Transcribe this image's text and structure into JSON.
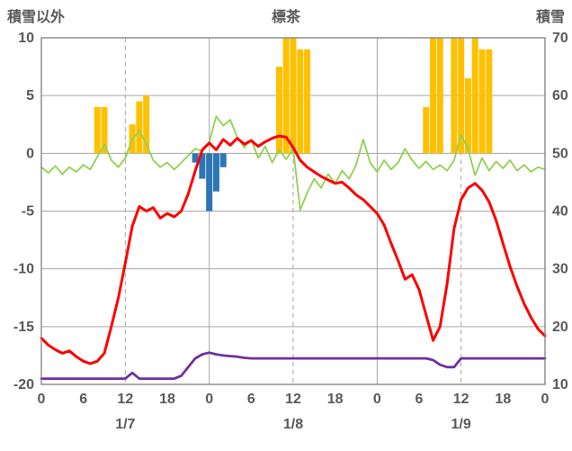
{
  "chart_data": {
    "type": "combo",
    "title": "標茶",
    "left_axis": {
      "label": "積雪以外",
      "min": -20,
      "max": 10,
      "ticks": [
        10,
        5,
        0,
        -5,
        -10,
        -15,
        -20
      ]
    },
    "right_axis": {
      "label": "積雪",
      "min": 10,
      "max": 70,
      "ticks": [
        70,
        60,
        50,
        40,
        30,
        20,
        10
      ]
    },
    "x_axis": {
      "hours_total": 72,
      "tick_every": 6,
      "tick_labels": [
        "0",
        "6",
        "12",
        "18",
        "0",
        "6",
        "12",
        "18",
        "0",
        "6",
        "12",
        "18",
        "0"
      ],
      "day_labels": [
        "1/7",
        "1/8",
        "1/9"
      ],
      "day_label_hours": [
        12,
        36,
        60
      ],
      "gridlines_solid_hours": [
        24,
        48
      ],
      "gridlines_dashed_hours": [
        12,
        36,
        60
      ]
    },
    "colors": {
      "background": "#FFFFFF",
      "grid": "#A6A6A6",
      "border": "#7F7F7F",
      "text": "#595959"
    },
    "series": [
      {
        "name": "sunshine",
        "type": "bar",
        "axis": "left",
        "color": "#FFC000",
        "points": [
          [
            8,
            4
          ],
          [
            9,
            4
          ],
          [
            13,
            2.5
          ],
          [
            14,
            4.5
          ],
          [
            15,
            5
          ],
          [
            34,
            7.5
          ],
          [
            35,
            10
          ],
          [
            36,
            10
          ],
          [
            37,
            9
          ],
          [
            38,
            9
          ],
          [
            55,
            4
          ],
          [
            56,
            10
          ],
          [
            57,
            10
          ],
          [
            59,
            10
          ],
          [
            60,
            10
          ],
          [
            61,
            6.5
          ],
          [
            62,
            10
          ],
          [
            63,
            9
          ],
          [
            64,
            9
          ]
        ]
      },
      {
        "name": "snowfall",
        "type": "bar",
        "axis": "left",
        "color": "#2E75B6",
        "points": [
          [
            22,
            -0.8
          ],
          [
            23,
            -2.2
          ],
          [
            24,
            -5
          ],
          [
            25,
            -3.3
          ],
          [
            26,
            -1.2
          ]
        ]
      },
      {
        "name": "wind",
        "type": "line",
        "axis": "left",
        "color": "#92D050",
        "width": 1.8,
        "values": [
          -1.2,
          -1.7,
          -1.1,
          -1.8,
          -1.2,
          -1.6,
          -1.0,
          -1.4,
          -0.3,
          0.8,
          -0.6,
          -1.2,
          -0.4,
          1.2,
          2.0,
          0.8,
          -0.6,
          -1.2,
          -0.8,
          -1.4,
          -0.8,
          -0.2,
          0.4,
          0.2,
          1.0,
          3.2,
          2.4,
          2.9,
          1.4,
          0.5,
          1.2,
          -0.4,
          0.6,
          -0.8,
          0.3,
          -0.5,
          0.4,
          -4.9,
          -3.4,
          -2.2,
          -3.0,
          -1.8,
          -2.6,
          -1.5,
          -2.2,
          -1.0,
          1.2,
          -0.8,
          -1.6,
          -0.6,
          -1.4,
          -0.8,
          0.4,
          -0.6,
          -1.3,
          -0.7,
          -1.4,
          -1.0,
          -1.5,
          -0.6,
          1.6,
          0.4,
          -1.9,
          -0.4,
          -1.5,
          -0.7,
          -1.3,
          -0.6,
          -1.5,
          -1.0,
          -1.6,
          -1.2,
          -1.4
        ]
      },
      {
        "name": "temperature",
        "type": "line",
        "axis": "left",
        "color": "#FF0000",
        "width": 3,
        "values": [
          -16.0,
          -16.6,
          -17.0,
          -17.3,
          -17.1,
          -17.6,
          -18.0,
          -18.2,
          -18.0,
          -17.3,
          -15.0,
          -12.5,
          -9.5,
          -6.3,
          -4.6,
          -5.0,
          -4.7,
          -5.6,
          -5.2,
          -5.5,
          -5.0,
          -3.5,
          -1.5,
          0.3,
          0.9,
          0.3,
          1.2,
          0.7,
          1.3,
          0.8,
          1.1,
          0.6,
          1.0,
          1.3,
          1.5,
          1.4,
          0.5,
          -0.6,
          -1.2,
          -1.6,
          -2.0,
          -2.3,
          -2.6,
          -2.5,
          -3.0,
          -3.6,
          -4.0,
          -4.6,
          -5.2,
          -6.2,
          -7.8,
          -9.3,
          -10.9,
          -10.5,
          -11.8,
          -14.0,
          -16.2,
          -15.0,
          -11.3,
          -6.5,
          -4.0,
          -3.0,
          -2.6,
          -3.2,
          -4.2,
          -5.8,
          -7.8,
          -9.8,
          -11.5,
          -13.0,
          -14.2,
          -15.2,
          -15.8
        ]
      },
      {
        "name": "snow_depth",
        "type": "line",
        "axis": "right",
        "color": "#7030A0",
        "width": 2.8,
        "values": [
          11,
          11,
          11,
          11,
          11,
          11,
          11,
          11,
          11,
          11,
          11,
          11,
          11,
          12,
          11,
          11,
          11,
          11,
          11,
          11,
          11.5,
          13,
          14.5,
          15.2,
          15.5,
          15.2,
          15,
          14.9,
          14.8,
          14.6,
          14.5,
          14.5,
          14.5,
          14.5,
          14.5,
          14.5,
          14.5,
          14.5,
          14.5,
          14.5,
          14.5,
          14.5,
          14.5,
          14.5,
          14.5,
          14.5,
          14.5,
          14.5,
          14.5,
          14.5,
          14.5,
          14.5,
          14.5,
          14.5,
          14.5,
          14.5,
          14.2,
          13.4,
          13,
          13,
          14.5,
          14.5,
          14.5,
          14.5,
          14.5,
          14.5,
          14.5,
          14.5,
          14.5,
          14.5,
          14.5,
          14.5,
          14.5
        ]
      }
    ]
  }
}
